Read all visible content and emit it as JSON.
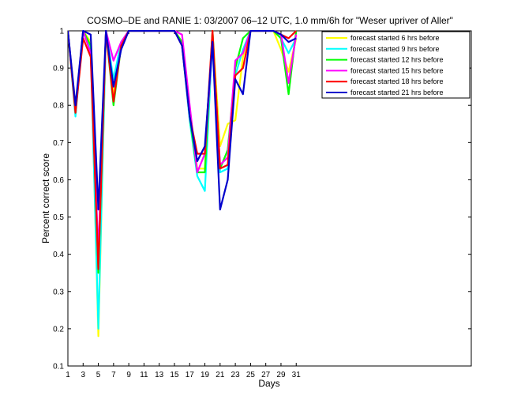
{
  "chart_data": {
    "type": "line",
    "title": "COSMO–DE and RANIE 1: 03/2007 06–12 UTC, 1.0 mm/6h for \"Weser upriver of Aller\"",
    "xlabel": "Days",
    "ylabel": "Percent correct score",
    "xlim": [
      1,
      54
    ],
    "ylim": [
      0.1,
      1.0
    ],
    "x_ticks": [
      1,
      3,
      5,
      7,
      9,
      11,
      13,
      15,
      17,
      19,
      21,
      23,
      25,
      27,
      29,
      31
    ],
    "y_ticks": [
      0.1,
      0.2,
      0.3,
      0.4,
      0.5,
      0.6,
      0.7,
      0.8,
      0.9,
      1.0
    ],
    "y_tick_labels": [
      "0.1",
      "0.2",
      "0.3",
      "0.4",
      "0.5",
      "0.6",
      "0.7",
      "0.8",
      "0.9",
      "1"
    ],
    "grid": false,
    "legend_position": "top-right",
    "series": [
      {
        "name": "forecast started 6 hrs before",
        "color": "#ffff00",
        "values": [
          [
            1,
            1.0
          ],
          [
            2,
            0.79
          ],
          [
            3,
            1.0
          ],
          [
            4,
            0.97
          ],
          [
            5,
            0.18
          ],
          [
            6,
            1.0
          ],
          [
            7,
            0.83
          ],
          [
            8,
            0.96
          ],
          [
            9,
            1.0
          ],
          [
            10,
            1.0
          ],
          [
            11,
            1.0
          ],
          [
            12,
            1.0
          ],
          [
            13,
            1.0
          ],
          [
            14,
            1.0
          ],
          [
            15,
            1.0
          ],
          [
            16,
            0.97
          ],
          [
            17,
            0.78
          ],
          [
            18,
            0.63
          ],
          [
            19,
            0.63
          ],
          [
            20,
            1.0
          ],
          [
            21,
            0.69
          ],
          [
            22,
            0.75
          ],
          [
            23,
            0.76
          ],
          [
            24,
            0.93
          ],
          [
            25,
            1.0
          ],
          [
            26,
            1.0
          ],
          [
            27,
            1.0
          ],
          [
            28,
            1.0
          ],
          [
            29,
            0.95
          ],
          [
            30,
            0.89
          ],
          [
            31,
            0.98
          ]
        ]
      },
      {
        "name": "forecast started 9 hrs before",
        "color": "#00ffff",
        "values": [
          [
            1,
            1.0
          ],
          [
            2,
            0.77
          ],
          [
            3,
            1.0
          ],
          [
            4,
            0.95
          ],
          [
            5,
            0.2
          ],
          [
            6,
            1.0
          ],
          [
            7,
            0.87
          ],
          [
            8,
            0.97
          ],
          [
            9,
            1.0
          ],
          [
            10,
            1.0
          ],
          [
            11,
            1.0
          ],
          [
            12,
            1.0
          ],
          [
            13,
            1.0
          ],
          [
            14,
            1.0
          ],
          [
            15,
            1.0
          ],
          [
            16,
            0.96
          ],
          [
            17,
            0.76
          ],
          [
            18,
            0.61
          ],
          [
            19,
            0.57
          ],
          [
            20,
            0.98
          ],
          [
            21,
            0.62
          ],
          [
            22,
            0.63
          ],
          [
            23,
            0.88
          ],
          [
            24,
            0.95
          ],
          [
            25,
            1.0
          ],
          [
            26,
            1.0
          ],
          [
            27,
            1.0
          ],
          [
            28,
            1.0
          ],
          [
            29,
            0.98
          ],
          [
            30,
            0.94
          ],
          [
            31,
            0.98
          ]
        ]
      },
      {
        "name": "forecast started 12 hrs before",
        "color": "#00ff00",
        "values": [
          [
            1,
            1.0
          ],
          [
            2,
            0.78
          ],
          [
            3,
            1.0
          ],
          [
            4,
            0.96
          ],
          [
            5,
            0.35
          ],
          [
            6,
            1.0
          ],
          [
            7,
            0.8
          ],
          [
            8,
            0.96
          ],
          [
            9,
            1.0
          ],
          [
            10,
            1.0
          ],
          [
            11,
            1.0
          ],
          [
            12,
            1.0
          ],
          [
            13,
            1.0
          ],
          [
            14,
            1.0
          ],
          [
            15,
            1.0
          ],
          [
            16,
            0.97
          ],
          [
            17,
            0.77
          ],
          [
            18,
            0.62
          ],
          [
            19,
            0.62
          ],
          [
            20,
            1.0
          ],
          [
            21,
            0.63
          ],
          [
            22,
            0.68
          ],
          [
            23,
            0.9
          ],
          [
            24,
            0.98
          ],
          [
            25,
            1.0
          ],
          [
            26,
            1.0
          ],
          [
            27,
            1.0
          ],
          [
            28,
            1.0
          ],
          [
            29,
            0.98
          ],
          [
            30,
            0.83
          ],
          [
            31,
            1.0
          ]
        ]
      },
      {
        "name": "forecast started 15 hrs before",
        "color": "#ff00ff",
        "values": [
          [
            1,
            1.0
          ],
          [
            2,
            0.79
          ],
          [
            3,
            1.0
          ],
          [
            4,
            0.94
          ],
          [
            5,
            0.4
          ],
          [
            6,
            1.0
          ],
          [
            7,
            0.92
          ],
          [
            8,
            0.97
          ],
          [
            9,
            1.0
          ],
          [
            10,
            1.0
          ],
          [
            11,
            1.0
          ],
          [
            12,
            1.0
          ],
          [
            13,
            1.0
          ],
          [
            14,
            1.0
          ],
          [
            15,
            1.0
          ],
          [
            16,
            0.99
          ],
          [
            17,
            0.8
          ],
          [
            18,
            0.62
          ],
          [
            19,
            0.67
          ],
          [
            20,
            0.97
          ],
          [
            21,
            0.64
          ],
          [
            22,
            0.66
          ],
          [
            23,
            0.92
          ],
          [
            24,
            0.94
          ],
          [
            25,
            1.0
          ],
          [
            26,
            1.0
          ],
          [
            27,
            1.0
          ],
          [
            28,
            1.0
          ],
          [
            29,
            0.99
          ],
          [
            30,
            0.86
          ],
          [
            31,
            0.99
          ]
        ]
      },
      {
        "name": "forecast started 18 hrs before",
        "color": "#ff0000",
        "values": [
          [
            1,
            1.0
          ],
          [
            2,
            0.78
          ],
          [
            3,
            0.98
          ],
          [
            4,
            0.93
          ],
          [
            5,
            0.36
          ],
          [
            6,
            1.0
          ],
          [
            7,
            0.81
          ],
          [
            8,
            0.96
          ],
          [
            9,
            1.0
          ],
          [
            10,
            1.0
          ],
          [
            11,
            1.0
          ],
          [
            12,
            1.0
          ],
          [
            13,
            1.0
          ],
          [
            14,
            1.0
          ],
          [
            15,
            1.0
          ],
          [
            16,
            0.96
          ],
          [
            17,
            0.77
          ],
          [
            18,
            0.67
          ],
          [
            19,
            0.67
          ],
          [
            20,
            1.0
          ],
          [
            21,
            0.63
          ],
          [
            22,
            0.64
          ],
          [
            23,
            0.88
          ],
          [
            24,
            0.9
          ],
          [
            25,
            1.0
          ],
          [
            26,
            1.0
          ],
          [
            27,
            1.0
          ],
          [
            28,
            1.0
          ],
          [
            29,
            0.99
          ],
          [
            30,
            0.98
          ],
          [
            31,
            1.0
          ]
        ]
      },
      {
        "name": "forecast started 21 hrs before",
        "color": "#0000cc",
        "values": [
          [
            1,
            1.0
          ],
          [
            2,
            0.8
          ],
          [
            3,
            1.0
          ],
          [
            4,
            0.99
          ],
          [
            5,
            0.52
          ],
          [
            6,
            1.0
          ],
          [
            7,
            0.85
          ],
          [
            8,
            0.95
          ],
          [
            9,
            1.0
          ],
          [
            10,
            1.0
          ],
          [
            11,
            1.0
          ],
          [
            12,
            1.0
          ],
          [
            13,
            1.0
          ],
          [
            14,
            1.0
          ],
          [
            15,
            1.0
          ],
          [
            16,
            0.96
          ],
          [
            17,
            0.77
          ],
          [
            18,
            0.65
          ],
          [
            19,
            0.69
          ],
          [
            20,
            0.97
          ],
          [
            21,
            0.52
          ],
          [
            22,
            0.6
          ],
          [
            23,
            0.87
          ],
          [
            24,
            0.83
          ],
          [
            25,
            1.0
          ],
          [
            26,
            1.0
          ],
          [
            27,
            1.0
          ],
          [
            28,
            1.0
          ],
          [
            29,
            0.99
          ],
          [
            30,
            0.97
          ],
          [
            31,
            0.98
          ]
        ]
      }
    ]
  }
}
